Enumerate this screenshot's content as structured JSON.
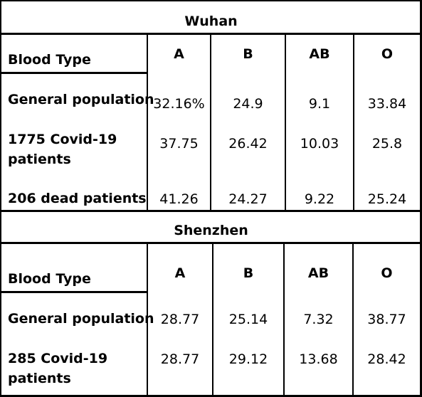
{
  "sections": [
    {
      "title": "Wuhan",
      "header": {
        "label": "Blood Type",
        "columns": [
          "A",
          "B",
          "AB",
          "O"
        ]
      },
      "rows": [
        {
          "label": "General population",
          "values": [
            "32.16%",
            "24.9",
            "9.1",
            "33.84"
          ]
        },
        {
          "label": "1775 Covid-19 patients",
          "values": [
            "37.75",
            "26.42",
            "10.03",
            "25.8"
          ]
        },
        {
          "label": "206 dead patients",
          "values": [
            "41.26",
            "24.27",
            "9.22",
            "25.24"
          ]
        }
      ]
    },
    {
      "title": "Shenzhen",
      "header": {
        "label": "Blood Type",
        "columns": [
          "A",
          "B",
          "AB",
          "O"
        ]
      },
      "rows": [
        {
          "label": "General population",
          "values": [
            "28.77",
            "25.14",
            "7.32",
            "38.77"
          ]
        },
        {
          "label": "285 Covid-19 patients",
          "values": [
            "28.77",
            "29.12",
            "13.68",
            "28.42"
          ]
        }
      ]
    }
  ]
}
